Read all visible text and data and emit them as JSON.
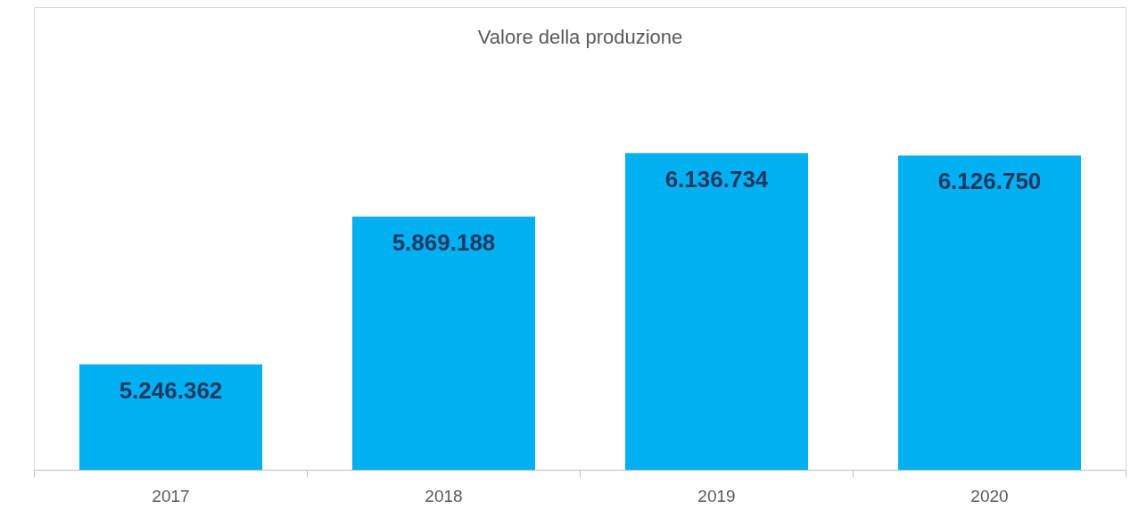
{
  "chart_data": {
    "type": "bar",
    "title": "Valore della produzione",
    "categories": [
      "2017",
      "2018",
      "2019",
      "2020"
    ],
    "values": [
      5246362,
      5869188,
      6136734,
      6126750
    ],
    "value_labels": [
      "5.246.362",
      "5.869.188",
      "6.136.734",
      "6.126.750"
    ],
    "color": "#00b0f0",
    "ylim": [
      4800000,
      6750000
    ],
    "tick_labels": "x",
    "grid": false
  }
}
